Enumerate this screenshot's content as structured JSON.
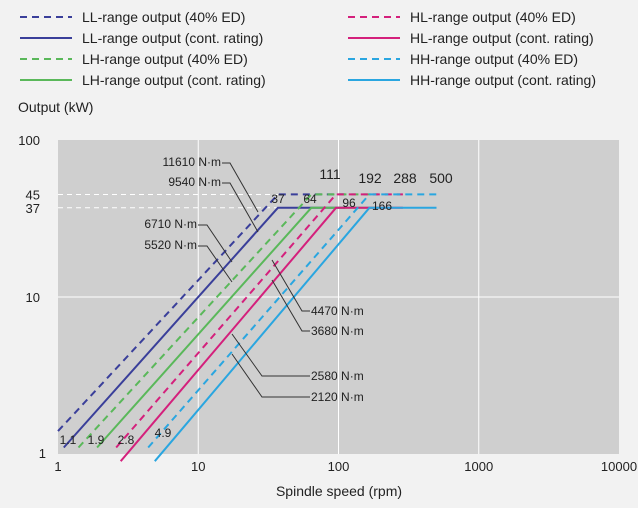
{
  "chart_data": {
    "type": "line",
    "title": "",
    "ylabel": "Output (kW)",
    "xlabel": "Spindle speed (rpm)",
    "x_scale": "log",
    "y_scale": "log",
    "xlim": [
      1,
      10000
    ],
    "ylim": [
      1,
      100
    ],
    "x_ticks": [
      "1",
      "10",
      "100",
      "1000",
      "10000"
    ],
    "y_ticks": [
      "1",
      "10",
      "37",
      "45",
      "100"
    ],
    "grid": true,
    "legend_position": "top",
    "series": [
      {
        "name": "LL-range output (40% ED)",
        "color": "#3a3f9a",
        "dash": true,
        "x": [
          1,
          37,
          111
        ],
        "y": [
          1.4,
          45,
          45
        ]
      },
      {
        "name": "LL-range output (cont. rating)",
        "color": "#3a3f9a",
        "dash": false,
        "x": [
          1.1,
          37,
          111
        ],
        "y": [
          1.1,
          37,
          37
        ]
      },
      {
        "name": "LH-range output (40% ED)",
        "color": "#5ab85a",
        "dash": true,
        "x": [
          1.4,
          64,
          192
        ],
        "y": [
          1.1,
          45,
          45
        ]
      },
      {
        "name": "LH-range output (cont. rating)",
        "color": "#5ab85a",
        "dash": false,
        "x": [
          1.9,
          64,
          192
        ],
        "y": [
          1.1,
          37,
          37
        ]
      },
      {
        "name": "HL-range output (40% ED)",
        "color": "#d4207c",
        "dash": true,
        "x": [
          2.6,
          96,
          288
        ],
        "y": [
          1.1,
          45,
          45
        ]
      },
      {
        "name": "HL-range output (cont. rating)",
        "color": "#d4207c",
        "dash": false,
        "x": [
          2.8,
          96,
          288
        ],
        "y": [
          0.9,
          37,
          37
        ]
      },
      {
        "name": "HH-range output (40% ED)",
        "color": "#2aa6e0",
        "dash": true,
        "x": [
          4.4,
          166,
          500
        ],
        "y": [
          1.1,
          45,
          45
        ]
      },
      {
        "name": "HH-range output (cont. rating)",
        "color": "#2aa6e0",
        "dash": false,
        "x": [
          4.9,
          166,
          500
        ],
        "y": [
          0.9,
          37,
          37
        ]
      }
    ],
    "annotations": {
      "corner_speeds": [
        "111",
        "192",
        "288",
        "500"
      ],
      "mid_speeds": [
        "37",
        "64",
        "96",
        "166"
      ],
      "start_speeds": [
        "1.1",
        "1.9",
        "2.8",
        "4.9"
      ],
      "torques_left": [
        "11610 N·m",
        "9540 N·m",
        "6710 N·m",
        "5520 N·m"
      ],
      "torques_right": [
        "4470 N·m",
        "3680 N·m",
        "2580 N·m",
        "2120 N·m"
      ]
    }
  }
}
